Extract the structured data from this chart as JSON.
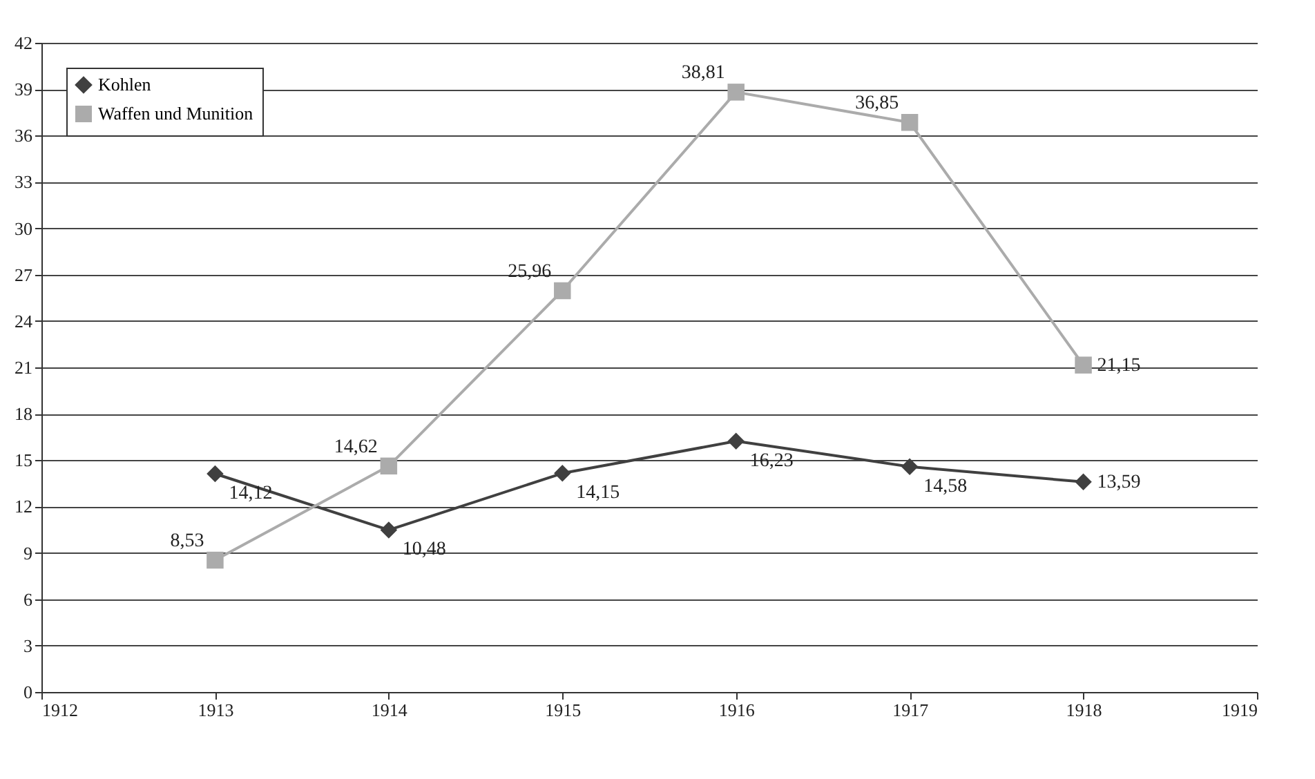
{
  "chart_data": {
    "type": "line",
    "x": [
      1913,
      1914,
      1915,
      1916,
      1917,
      1918
    ],
    "series": [
      {
        "name": "Kohlen",
        "color": "#404040",
        "marker": "diamond",
        "values": [
          14.12,
          10.48,
          14.15,
          16.23,
          14.58,
          13.59
        ],
        "value_labels": [
          "14,12",
          "10,48",
          "14,15",
          "16,23",
          "14,58",
          "13,59"
        ]
      },
      {
        "name": "Waffen und Munition",
        "color": "#ababab",
        "marker": "square",
        "values": [
          8.53,
          14.62,
          25.96,
          38.81,
          36.85,
          21.15
        ],
        "value_labels": [
          "8,53",
          "14,62",
          "25,96",
          "38,81",
          "36,85",
          "21,15"
        ]
      }
    ],
    "xlim": [
      1912,
      1919
    ],
    "xticks": [
      1912,
      1913,
      1914,
      1915,
      1916,
      1917,
      1918,
      1919
    ],
    "ylim": [
      0,
      42
    ],
    "yticks": [
      0,
      3,
      6,
      9,
      12,
      15,
      18,
      21,
      24,
      27,
      30,
      33,
      36,
      39,
      42
    ],
    "grid": "y",
    "legend": "top left"
  }
}
